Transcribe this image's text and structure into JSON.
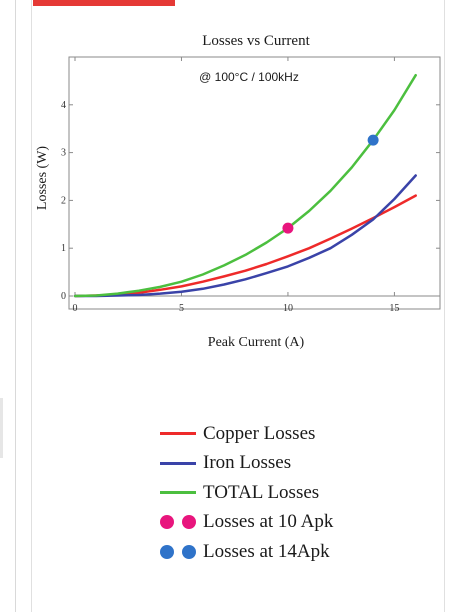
{
  "chart_data": {
    "type": "line",
    "title": "Losses vs Current",
    "annotation": "@ 100°C / 100kHz",
    "xlabel": "Peak Current (A)",
    "ylabel": "Losses (W)",
    "xlim": [
      0,
      17
    ],
    "ylim": [
      0,
      5
    ],
    "xticks": [
      "0",
      "5",
      "10",
      "15"
    ],
    "yticks": [
      "0",
      "1",
      "2",
      "3",
      "4"
    ],
    "grid": false,
    "series": [
      {
        "name": "Copper Losses",
        "color": "#ee2a2a",
        "x": [
          0,
          1,
          2,
          3,
          4,
          5,
          6,
          7,
          8,
          9,
          10,
          11,
          12,
          13,
          14,
          15,
          16
        ],
        "y": [
          0,
          0.01,
          0.03,
          0.07,
          0.13,
          0.2,
          0.3,
          0.41,
          0.53,
          0.67,
          0.83,
          1.0,
          1.2,
          1.41,
          1.63,
          1.86,
          2.1
        ]
      },
      {
        "name": "Iron Losses",
        "color": "#3a43a8",
        "x": [
          0,
          1,
          2,
          3,
          4,
          5,
          6,
          7,
          8,
          9,
          10,
          11,
          12,
          13,
          14,
          15,
          16
        ],
        "y": [
          0,
          0,
          0.01,
          0.02,
          0.05,
          0.09,
          0.15,
          0.24,
          0.35,
          0.48,
          0.62,
          0.8,
          1.0,
          1.28,
          1.6,
          2.03,
          2.52
        ]
      },
      {
        "name": "TOTAL Losses",
        "color": "#4cbf3f",
        "x": [
          0,
          1,
          2,
          3,
          4,
          5,
          6,
          7,
          8,
          9,
          10,
          11,
          12,
          13,
          14,
          15,
          16
        ],
        "y": [
          0,
          0.01,
          0.05,
          0.11,
          0.19,
          0.3,
          0.45,
          0.64,
          0.86,
          1.12,
          1.42,
          1.78,
          2.2,
          2.69,
          3.26,
          3.89,
          4.62
        ]
      }
    ],
    "markers": [
      {
        "name": "Losses at 10 Apk",
        "color": "#e8157d",
        "x": 10,
        "y": 1.42
      },
      {
        "name": "Losses at 14Apk",
        "color": "#2f73c9",
        "x": 14,
        "y": 3.26
      }
    ],
    "legend_position": "bottom"
  }
}
